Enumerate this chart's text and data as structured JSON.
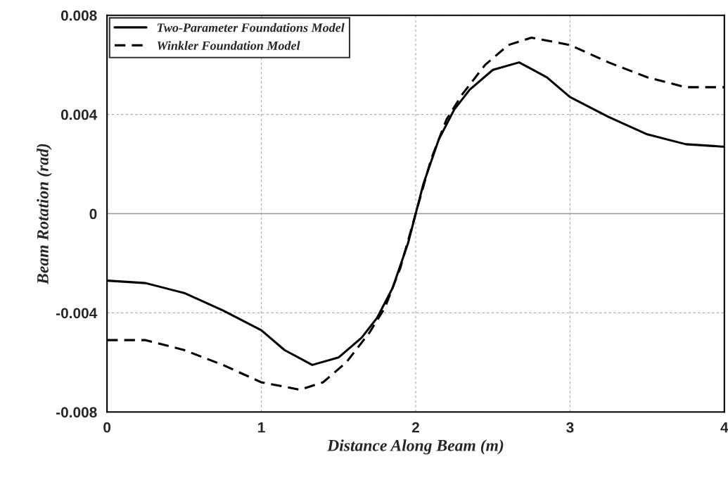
{
  "chart_data": {
    "type": "line",
    "xlabel": "Distance Along Beam (m)",
    "ylabel": "Beam Rotation (rad)",
    "xlim": [
      0,
      4
    ],
    "ylim": [
      -0.008,
      0.008
    ],
    "xticks": [
      0,
      1,
      2,
      3,
      4
    ],
    "yticks": [
      {
        "value": -0.008,
        "label": "-0.008"
      },
      {
        "value": -0.004,
        "label": "-0.004"
      },
      {
        "value": 0,
        "label": "0"
      },
      {
        "value": 0.004,
        "label": "0.004"
      },
      {
        "value": 0.008,
        "label": "0.008"
      }
    ],
    "grid": true,
    "legend": "top left",
    "marker": "none",
    "ref_lines": [
      {
        "axis": "y",
        "value": 0,
        "color": "#999999"
      }
    ],
    "series": [
      {
        "name": "Two-Parameter Foundations Model",
        "color": "#000000",
        "line_style": "solid",
        "x": [
          0,
          0.25,
          0.5,
          0.75,
          1.0,
          1.15,
          1.33,
          1.5,
          1.65,
          1.75,
          1.85,
          1.95,
          2.0,
          2.05,
          2.15,
          2.25,
          2.35,
          2.5,
          2.67,
          2.85,
          3.0,
          3.25,
          3.5,
          3.75,
          4.0
        ],
        "values": [
          -0.0027,
          -0.0028,
          -0.0032,
          -0.0039,
          -0.0047,
          -0.0055,
          -0.0061,
          -0.0058,
          -0.005,
          -0.0042,
          -0.003,
          -0.0012,
          0,
          0.0012,
          0.003,
          0.0042,
          0.005,
          0.0058,
          0.0061,
          0.0055,
          0.0047,
          0.0039,
          0.0032,
          0.0028,
          0.0027
        ]
      },
      {
        "name": "Winkler Foundation Model",
        "color": "#000000",
        "line_style": "dashed",
        "x": [
          0,
          0.25,
          0.5,
          0.75,
          1.0,
          1.25,
          1.4,
          1.55,
          1.7,
          1.8,
          1.9,
          2.0,
          2.1,
          2.2,
          2.3,
          2.45,
          2.6,
          2.75,
          3.0,
          3.25,
          3.5,
          3.75,
          4.0
        ],
        "values": [
          -0.0051,
          -0.0051,
          -0.0055,
          -0.0061,
          -0.0068,
          -0.0071,
          -0.0068,
          -0.006,
          -0.0048,
          -0.0038,
          -0.0022,
          0,
          0.0022,
          0.0038,
          0.0048,
          0.006,
          0.0068,
          0.0071,
          0.0068,
          0.0061,
          0.0055,
          0.0051,
          0.0051
        ]
      }
    ]
  }
}
